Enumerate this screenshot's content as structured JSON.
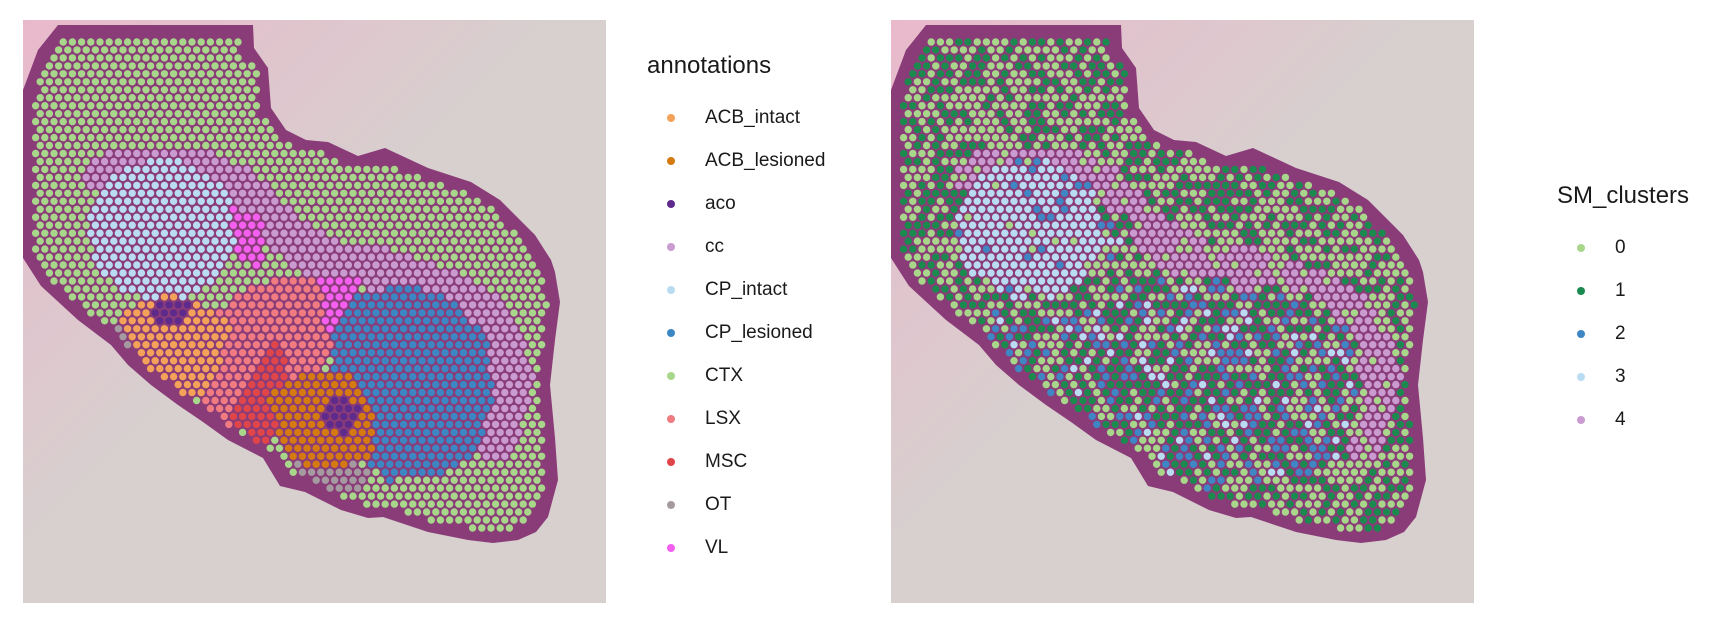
{
  "annotation_legend": {
    "title": "annotations",
    "items": [
      {
        "label": "ACB_intact",
        "color": "#f4a259"
      },
      {
        "label": "ACB_lesioned",
        "color": "#d57a10"
      },
      {
        "label": "aco",
        "color": "#5e2a8c"
      },
      {
        "label": "cc",
        "color": "#c99bd0"
      },
      {
        "label": "CP_intact",
        "color": "#b9dcf2"
      },
      {
        "label": "CP_lesioned",
        "color": "#3c86c4"
      },
      {
        "label": "CTX",
        "color": "#a8d68a"
      },
      {
        "label": "LSX",
        "color": "#f07b80"
      },
      {
        "label": "MSC",
        "color": "#e0454a"
      },
      {
        "label": "OT",
        "color": "#a49aa0"
      },
      {
        "label": "VL",
        "color": "#f55ff0"
      }
    ]
  },
  "cluster_legend": {
    "title": "SM_clusters",
    "items": [
      {
        "label": "0",
        "color": "#a8d68a"
      },
      {
        "label": "1",
        "color": "#1b8a4e"
      },
      {
        "label": "2",
        "color": "#3f86c4"
      },
      {
        "label": "3",
        "color": "#b9dcf2"
      },
      {
        "label": "4",
        "color": "#c99bd0"
      }
    ]
  },
  "tissue_colors": {
    "background": "#d8cfcf",
    "background_pink": "#e9b9cb",
    "tissue_edge": "#8a3c78"
  }
}
